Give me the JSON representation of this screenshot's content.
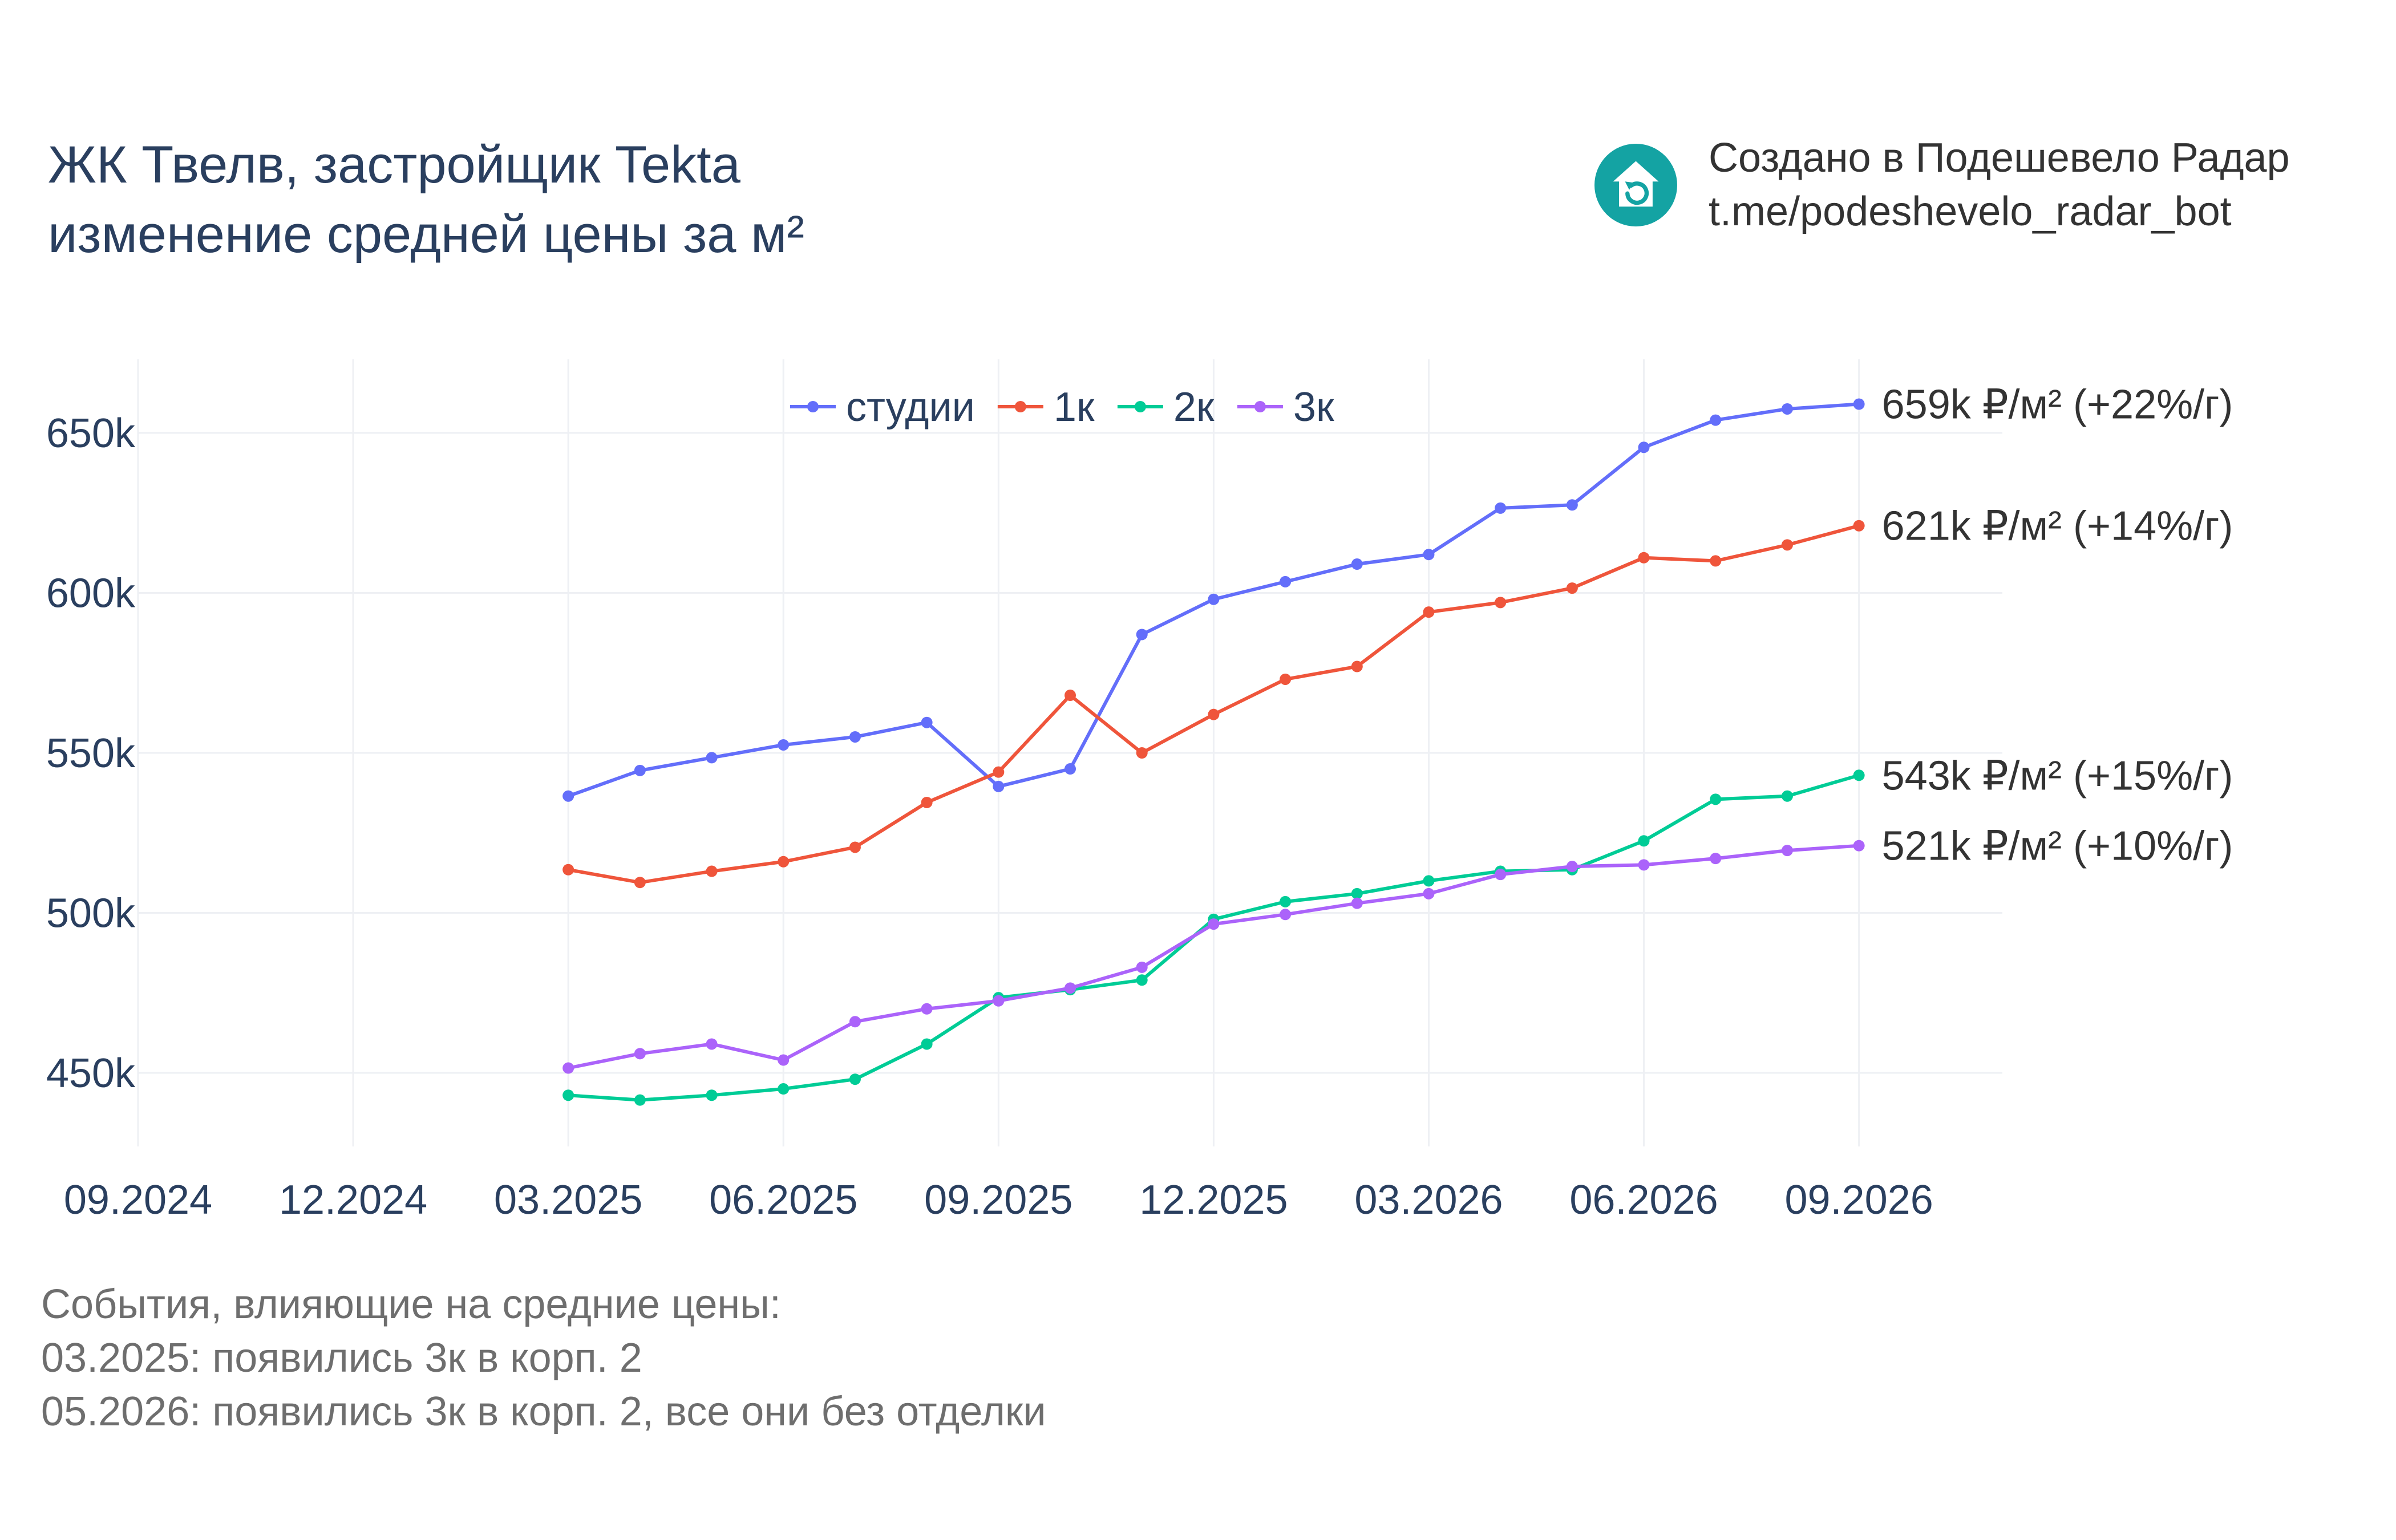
{
  "title": {
    "line1": "ЖК Твелв, застройщик Tekta",
    "line2": "изменение средней цены за м²"
  },
  "brand": {
    "line1": "Создано в Подешевело Радар",
    "line2": "t.me/podeshevelo_radar_bot",
    "icon": "house-refresh-icon",
    "color": "#14a3a3"
  },
  "notes": {
    "heading": "События, влияющие на средние цены:",
    "items": [
      "03.2025: появились 3к в корп. 2",
      "05.2026: появились 3к в корп. 2, все они без отделки"
    ]
  },
  "chart_data": {
    "type": "line",
    "x": [
      "2025-03",
      "2025-04",
      "2025-05",
      "2025-06",
      "2025-07",
      "2025-08",
      "2025-09",
      "2025-10",
      "2025-11",
      "2025-12",
      "2026-01",
      "2026-02",
      "2026-03",
      "2026-04",
      "2026-05",
      "2026-06",
      "2026-07",
      "2026-08",
      "2026-09"
    ],
    "x_ticks": [
      "09.2024",
      "12.2024",
      "03.2025",
      "06.2025",
      "09.2025",
      "12.2025",
      "03.2026",
      "06.2026",
      "09.2026"
    ],
    "xlim": [
      "2024-09",
      "2026-11"
    ],
    "y_ticks": [
      450000,
      500000,
      550000,
      600000,
      650000
    ],
    "y_tick_labels": [
      "450k",
      "500k",
      "550k",
      "600k",
      "650k"
    ],
    "ylim": [
      427000,
      673000
    ],
    "grid": true,
    "legend_placement": "top-center",
    "series": [
      {
        "name": "студии",
        "color": "#636efa",
        "end_label": "659k ₽/м² (+22%/г)",
        "values": [
          536500,
          544500,
          548500,
          552500,
          555000,
          559500,
          539500,
          545000,
          587000,
          598000,
          603500,
          609000,
          612000,
          626500,
          627500,
          645500,
          654000,
          657500,
          659000
        ]
      },
      {
        "name": "1к",
        "color": "#ef553b",
        "end_label": "621k ₽/м² (+14%/г)",
        "values": [
          513500,
          509500,
          513000,
          516000,
          520500,
          534500,
          544000,
          568000,
          550000,
          562000,
          573000,
          577000,
          594000,
          597000,
          601500,
          611000,
          610000,
          615000,
          621000
        ]
      },
      {
        "name": "2к",
        "color": "#00cc96",
        "end_label": "543k ₽/м² (+15%/г)",
        "values": [
          443000,
          441500,
          443000,
          445000,
          448000,
          459000,
          473500,
          476000,
          479000,
          498000,
          503500,
          506000,
          510000,
          513000,
          513500,
          522500,
          535500,
          536500,
          543000
        ]
      },
      {
        "name": "3к",
        "color": "#ab63fa",
        "end_label": "521k ₽/м² (+10%/г)",
        "values": [
          451500,
          456000,
          459000,
          454000,
          466000,
          470000,
          472500,
          476500,
          483000,
          496500,
          499500,
          503000,
          506000,
          512000,
          514500,
          515000,
          517000,
          519500,
          521000
        ]
      }
    ]
  }
}
